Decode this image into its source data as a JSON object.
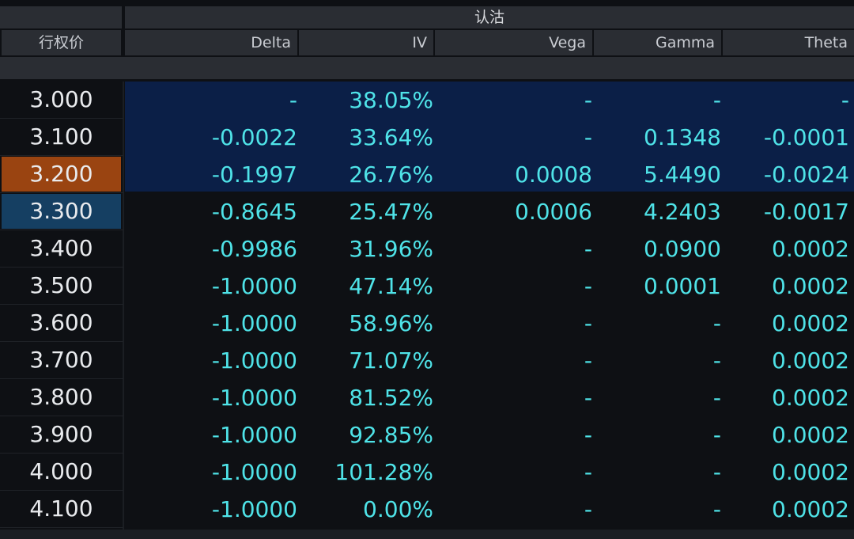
{
  "header": {
    "group_title": "认沽",
    "columns": {
      "strike": "行权价",
      "delta": "Delta",
      "iv": "IV",
      "vega": "Vega",
      "gamma": "Gamma",
      "theta": "Theta"
    }
  },
  "colors": {
    "value_text": "#4fe3e8",
    "strike_text": "#e9ebee",
    "highlight_orange": "#9a4411",
    "highlight_blue": "#153f62",
    "in_money_block": "#0b1f47",
    "header_bg": "#2a2d33"
  },
  "rows": [
    {
      "strike": "3.000",
      "delta": "-",
      "iv": "38.05%",
      "vega": "-",
      "gamma": "-",
      "theta": "-"
    },
    {
      "strike": "3.100",
      "delta": "-0.0022",
      "iv": "33.64%",
      "vega": "-",
      "gamma": "0.1348",
      "theta": "-0.0001"
    },
    {
      "strike": "3.200",
      "delta": "-0.1997",
      "iv": "26.76%",
      "vega": "0.0008",
      "gamma": "5.4490",
      "theta": "-0.0024"
    },
    {
      "strike": "3.300",
      "delta": "-0.8645",
      "iv": "25.47%",
      "vega": "0.0006",
      "gamma": "4.2403",
      "theta": "-0.0017"
    },
    {
      "strike": "3.400",
      "delta": "-0.9986",
      "iv": "31.96%",
      "vega": "-",
      "gamma": "0.0900",
      "theta": "0.0002"
    },
    {
      "strike": "3.500",
      "delta": "-1.0000",
      "iv": "47.14%",
      "vega": "-",
      "gamma": "0.0001",
      "theta": "0.0002"
    },
    {
      "strike": "3.600",
      "delta": "-1.0000",
      "iv": "58.96%",
      "vega": "-",
      "gamma": "-",
      "theta": "0.0002"
    },
    {
      "strike": "3.700",
      "delta": "-1.0000",
      "iv": "71.07%",
      "vega": "-",
      "gamma": "-",
      "theta": "0.0002"
    },
    {
      "strike": "3.800",
      "delta": "-1.0000",
      "iv": "81.52%",
      "vega": "-",
      "gamma": "-",
      "theta": "0.0002"
    },
    {
      "strike": "3.900",
      "delta": "-1.0000",
      "iv": "92.85%",
      "vega": "-",
      "gamma": "-",
      "theta": "0.0002"
    },
    {
      "strike": "4.000",
      "delta": "-1.0000",
      "iv": "101.28%",
      "vega": "-",
      "gamma": "-",
      "theta": "0.0002"
    },
    {
      "strike": "4.100",
      "delta": "-1.0000",
      "iv": "0.00%",
      "vega": "-",
      "gamma": "-",
      "theta": "0.0002"
    }
  ]
}
